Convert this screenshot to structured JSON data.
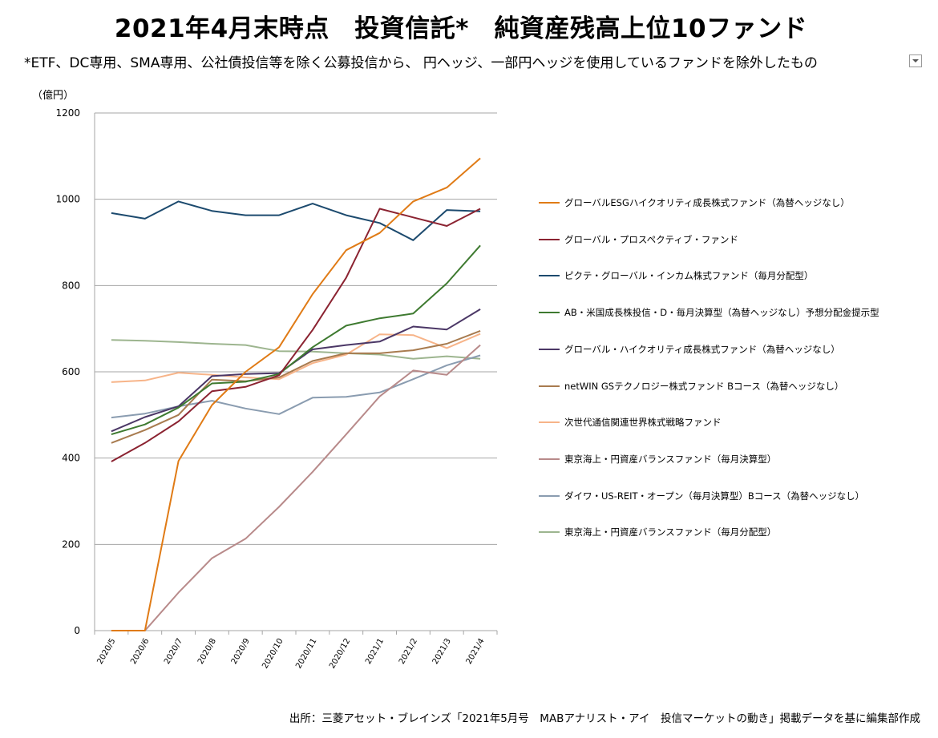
{
  "title": "2021年4月末時点　投資信託*　純資産残高上位10ファンド",
  "subtitle": "*ETF、DC専用、SMA専用、公社債投信等を除く公募投信から、 円ヘッジ、一部円ヘッジを使用しているファンドを除外したもの",
  "unit_label": "（億円）",
  "source": "出所：三菱アセット・ブレインズ「2021年5月号　MABアナリスト・アイ　投信マーケットの動き」掲載データを基に編集部作成",
  "dropdown_icon": "chevron-down-icon",
  "chart_data": {
    "type": "line",
    "ylabel": "（億円）",
    "ylim": [
      0,
      1200
    ],
    "yticks": [
      0,
      200,
      400,
      600,
      800,
      1000,
      1200
    ],
    "grid": true,
    "legend_position": "right",
    "categories": [
      "2020/5",
      "2020/6",
      "2020/7",
      "2020/8",
      "2020/9",
      "2020/10",
      "2020/11",
      "2020/12",
      "2021/1",
      "2021/2",
      "2021/3",
      "2021/4"
    ],
    "series": [
      {
        "name": "グローバルESGハイクオリティ成長株式ファンド（為替ヘッジなし）",
        "color": "#e07b16",
        "values": [
          0,
          0,
          393,
          523,
          600,
          657,
          780,
          882,
          922,
          995,
          1027,
          1095
        ]
      },
      {
        "name": "グローバル・プロスペクティブ・ファンド",
        "color": "#8b2331",
        "values": [
          392,
          435,
          485,
          555,
          565,
          592,
          697,
          818,
          978,
          958,
          938,
          978
        ]
      },
      {
        "name": "ピクテ・グローバル・インカム株式ファンド（毎月分配型）",
        "color": "#1c4a6e",
        "values": [
          968,
          955,
          995,
          973,
          963,
          963,
          990,
          963,
          945,
          905,
          975,
          972
        ]
      },
      {
        "name": "AB・米国成長株投信・D・毎月決算型（為替ヘッジなし）予想分配金提示型",
        "color": "#3e7a30",
        "values": [
          455,
          478,
          517,
          573,
          577,
          595,
          657,
          707,
          724,
          735,
          805,
          893
        ]
      },
      {
        "name": "グローバル・ハイクオリティ成長株式ファンド（為替ヘッジなし）",
        "color": "#4b3766",
        "values": [
          462,
          495,
          520,
          590,
          595,
          597,
          652,
          662,
          670,
          705,
          698,
          745
        ]
      },
      {
        "name": "netWIN GSテクノロジー株式ファンド Bコース（為替ヘッジなし）",
        "color": "#a87b4f",
        "values": [
          435,
          465,
          500,
          582,
          578,
          587,
          625,
          643,
          643,
          650,
          665,
          695
        ]
      },
      {
        "name": "次世代通信関連世界株式戦略ファンド",
        "color": "#f7b489",
        "values": [
          576,
          580,
          598,
          593,
          587,
          583,
          620,
          640,
          687,
          685,
          655,
          688
        ]
      },
      {
        "name": "東京海上・円資産バランスファンド（毎月決算型）",
        "color": "#b88a8a",
        "values": [
          0,
          0,
          88,
          168,
          213,
          287,
          368,
          455,
          543,
          603,
          593,
          662
        ]
      },
      {
        "name": "ダイワ・US-REIT・オープン（毎月決算型）Bコース（為替ヘッジなし）",
        "color": "#8a9cb0",
        "values": [
          494,
          503,
          520,
          533,
          515,
          502,
          540,
          542,
          552,
          583,
          615,
          638
        ]
      },
      {
        "name": "東京海上・円資産バランスファンド（毎月分配型）",
        "color": "#9db58f",
        "values": [
          674,
          672,
          669,
          665,
          662,
          648,
          647,
          643,
          640,
          630,
          636,
          630
        ]
      }
    ]
  }
}
